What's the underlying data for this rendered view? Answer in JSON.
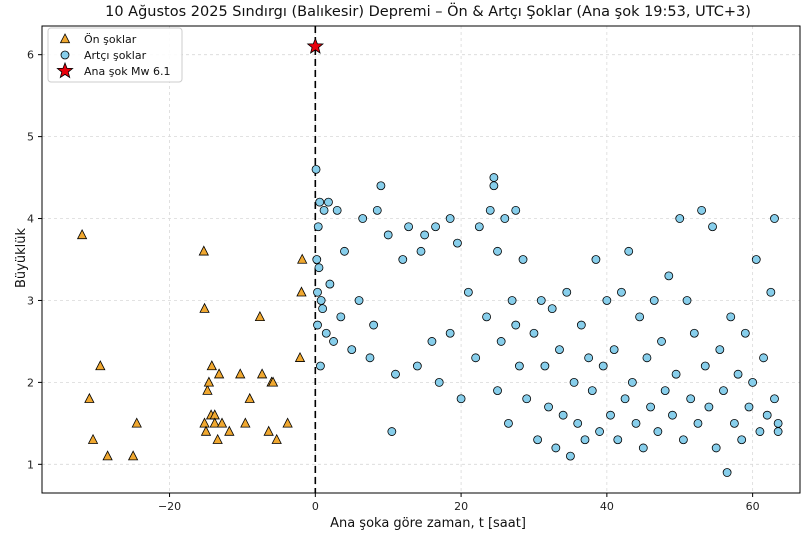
{
  "chart_data": {
    "type": "scatter",
    "title": "10 Ağustos 2025 Sındırgı (Balıkesir) Depremi – Ön & Artçı Şoklar (Ana şok 19:53, UTC+3)",
    "xlabel": "Ana şoka göre zaman, t [saat]",
    "ylabel": "Büyüklük",
    "xlim": [
      -37.5,
      66.5
    ],
    "ylim": [
      0.65,
      6.35
    ],
    "x_ticks": [
      -20,
      0,
      20,
      40,
      60
    ],
    "y_ticks": [
      1,
      2,
      3,
      4,
      5,
      6
    ],
    "x_tick_labels": [
      "−20",
      "0",
      "20",
      "40",
      "60"
    ],
    "y_tick_labels": [
      "1",
      "2",
      "3",
      "4",
      "5",
      "6"
    ],
    "grid": true,
    "legend_position": "top-left",
    "mainshock_line_x": 0,
    "series": [
      {
        "name": "Ön şoklar",
        "marker": "triangle",
        "color": "#f0a830",
        "points": [
          [
            -32,
            3.8
          ],
          [
            -31,
            1.8
          ],
          [
            -30.5,
            1.3
          ],
          [
            -29.5,
            2.2
          ],
          [
            -28.5,
            1.1
          ],
          [
            -25,
            1.1
          ],
          [
            -24.5,
            1.5
          ],
          [
            -15.3,
            3.6
          ],
          [
            -15.2,
            2.9
          ],
          [
            -15.2,
            1.5
          ],
          [
            -15,
            1.4
          ],
          [
            -14.8,
            1.9
          ],
          [
            -14.6,
            2.0
          ],
          [
            -14.3,
            1.6
          ],
          [
            -14.2,
            2.2
          ],
          [
            -13.8,
            1.6
          ],
          [
            -13.8,
            1.5
          ],
          [
            -13.4,
            1.3
          ],
          [
            -13.2,
            2.1
          ],
          [
            -12.8,
            1.5
          ],
          [
            -11.8,
            1.4
          ],
          [
            -10.3,
            2.1
          ],
          [
            -9.6,
            1.5
          ],
          [
            -9,
            1.8
          ],
          [
            -7.6,
            2.8
          ],
          [
            -7.3,
            2.1
          ],
          [
            -6.4,
            1.4
          ],
          [
            -6,
            2.0
          ],
          [
            -5.8,
            2.0
          ],
          [
            -5.3,
            1.3
          ],
          [
            -3.8,
            1.5
          ],
          [
            -2.1,
            2.3
          ],
          [
            -1.9,
            3.1
          ],
          [
            -1.8,
            3.5
          ]
        ]
      },
      {
        "name": "Artçı şoklar",
        "marker": "circle",
        "color": "#87ceeb",
        "points": [
          [
            0.1,
            4.6
          ],
          [
            0.2,
            3.5
          ],
          [
            0.3,
            3.1
          ],
          [
            0.3,
            2.7
          ],
          [
            0.4,
            3.9
          ],
          [
            0.5,
            3.4
          ],
          [
            0.6,
            4.2
          ],
          [
            0.7,
            2.2
          ],
          [
            0.8,
            3.0
          ],
          [
            1.0,
            2.9
          ],
          [
            1.2,
            4.1
          ],
          [
            1.5,
            2.6
          ],
          [
            1.8,
            4.2
          ],
          [
            2.0,
            3.2
          ],
          [
            2.5,
            2.5
          ],
          [
            3.0,
            4.1
          ],
          [
            3.5,
            2.8
          ],
          [
            4.0,
            3.6
          ],
          [
            5.0,
            2.4
          ],
          [
            6.0,
            3.0
          ],
          [
            6.5,
            4.0
          ],
          [
            7.5,
            2.3
          ],
          [
            8.0,
            2.7
          ],
          [
            8.5,
            4.1
          ],
          [
            9.0,
            4.4
          ],
          [
            10.0,
            3.8
          ],
          [
            10.5,
            1.4
          ],
          [
            11.0,
            2.1
          ],
          [
            12.0,
            3.5
          ],
          [
            12.8,
            3.9
          ],
          [
            14.0,
            2.2
          ],
          [
            14.5,
            3.6
          ],
          [
            15.0,
            3.8
          ],
          [
            16.0,
            2.5
          ],
          [
            16.5,
            3.9
          ],
          [
            17.0,
            2.0
          ],
          [
            18.5,
            2.6
          ],
          [
            18.5,
            4.0
          ],
          [
            19.5,
            3.7
          ],
          [
            20.0,
            1.8
          ],
          [
            21.0,
            3.1
          ],
          [
            22.0,
            2.3
          ],
          [
            22.5,
            3.9
          ],
          [
            23.5,
            2.8
          ],
          [
            24.0,
            4.1
          ],
          [
            24.5,
            4.5
          ],
          [
            24.5,
            4.4
          ],
          [
            25.0,
            1.9
          ],
          [
            25.0,
            3.6
          ],
          [
            25.5,
            2.5
          ],
          [
            26.0,
            4.0
          ],
          [
            26.5,
            1.5
          ],
          [
            27.0,
            3.0
          ],
          [
            27.5,
            2.7
          ],
          [
            27.5,
            4.1
          ],
          [
            28.0,
            2.2
          ],
          [
            28.5,
            3.5
          ],
          [
            29.0,
            1.8
          ],
          [
            30.0,
            2.6
          ],
          [
            30.5,
            1.3
          ],
          [
            31.0,
            3.0
          ],
          [
            31.5,
            2.2
          ],
          [
            32.0,
            1.7
          ],
          [
            32.5,
            2.9
          ],
          [
            33.0,
            1.2
          ],
          [
            33.5,
            2.4
          ],
          [
            34.0,
            1.6
          ],
          [
            34.5,
            3.1
          ],
          [
            35.0,
            1.1
          ],
          [
            35.5,
            2.0
          ],
          [
            36.0,
            1.5
          ],
          [
            36.5,
            2.7
          ],
          [
            37.0,
            1.3
          ],
          [
            37.5,
            2.3
          ],
          [
            38.0,
            1.9
          ],
          [
            38.5,
            3.5
          ],
          [
            39.0,
            1.4
          ],
          [
            39.5,
            2.2
          ],
          [
            40.0,
            3.0
          ],
          [
            40.5,
            1.6
          ],
          [
            41.0,
            2.4
          ],
          [
            41.5,
            1.3
          ],
          [
            42.0,
            3.1
          ],
          [
            42.5,
            1.8
          ],
          [
            43.0,
            3.6
          ],
          [
            43.5,
            2.0
          ],
          [
            44.0,
            1.5
          ],
          [
            44.5,
            2.8
          ],
          [
            45.0,
            1.2
          ],
          [
            45.5,
            2.3
          ],
          [
            46.0,
            1.7
          ],
          [
            46.5,
            3.0
          ],
          [
            47.0,
            1.4
          ],
          [
            47.5,
            2.5
          ],
          [
            48.0,
            1.9
          ],
          [
            48.5,
            3.3
          ],
          [
            49.0,
            1.6
          ],
          [
            49.5,
            2.1
          ],
          [
            50.0,
            4.0
          ],
          [
            50.5,
            1.3
          ],
          [
            51.0,
            3.0
          ],
          [
            51.5,
            1.8
          ],
          [
            52.0,
            2.6
          ],
          [
            52.5,
            1.5
          ],
          [
            53.0,
            4.1
          ],
          [
            53.5,
            2.2
          ],
          [
            54.0,
            1.7
          ],
          [
            54.5,
            3.9
          ],
          [
            55.0,
            1.2
          ],
          [
            55.5,
            2.4
          ],
          [
            56.0,
            1.9
          ],
          [
            56.5,
            0.9
          ],
          [
            57.0,
            2.8
          ],
          [
            57.5,
            1.5
          ],
          [
            58.0,
            2.1
          ],
          [
            58.5,
            1.3
          ],
          [
            59.0,
            2.6
          ],
          [
            59.5,
            1.7
          ],
          [
            60.0,
            2.0
          ],
          [
            60.5,
            3.5
          ],
          [
            61.0,
            1.4
          ],
          [
            61.5,
            2.3
          ],
          [
            62.0,
            1.6
          ],
          [
            62.5,
            3.1
          ],
          [
            63.0,
            4.0
          ],
          [
            63.0,
            1.8
          ],
          [
            63.5,
            1.5
          ],
          [
            63.5,
            1.4
          ]
        ]
      },
      {
        "name": "Ana şok Mw 6.1",
        "marker": "star",
        "color": "#e8000b",
        "points": [
          [
            0,
            6.1
          ]
        ]
      }
    ]
  }
}
